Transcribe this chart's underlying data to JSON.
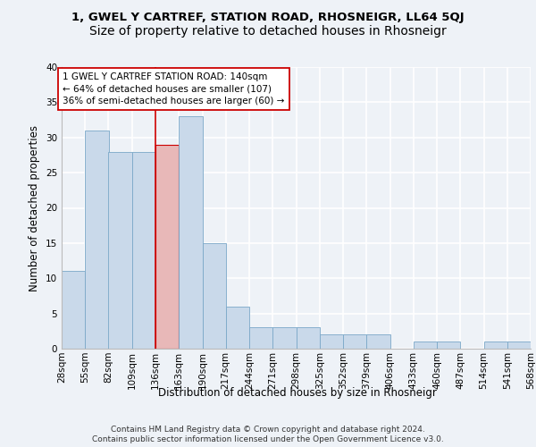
{
  "title1": "1, GWEL Y CARTREF, STATION ROAD, RHOSNEIGR, LL64 5QJ",
  "title2": "Size of property relative to detached houses in Rhosneigr",
  "xlabel": "Distribution of detached houses by size in Rhosneigr",
  "ylabel": "Number of detached properties",
  "bin_edges": [
    28,
    55,
    82,
    109,
    136,
    163,
    190,
    217,
    244,
    271,
    298,
    325,
    352,
    379,
    406,
    433,
    460,
    487,
    514,
    541,
    568
  ],
  "bin_labels": [
    "28sqm",
    "55sqm",
    "82sqm",
    "109sqm",
    "136sqm",
    "163sqm",
    "190sqm",
    "217sqm",
    "244sqm",
    "271sqm",
    "298sqm",
    "325sqm",
    "352sqm",
    "379sqm",
    "406sqm",
    "433sqm",
    "460sqm",
    "487sqm",
    "514sqm",
    "541sqm",
    "568sqm"
  ],
  "counts": [
    11,
    31,
    28,
    28,
    29,
    33,
    15,
    6,
    3,
    3,
    3,
    2,
    2,
    2,
    0,
    1,
    1,
    0,
    1,
    1
  ],
  "bar_color": "#c9d9ea",
  "bar_edge_color": "#7ba8c8",
  "highlight_index": 4,
  "highlight_bar_color": "#e8b8b8",
  "highlight_edge_color": "#cc0000",
  "vline_x": 136,
  "vline_color": "#cc0000",
  "annotation_text": "1 GWEL Y CARTREF STATION ROAD: 140sqm\n← 64% of detached houses are smaller (107)\n36% of semi-detached houses are larger (60) →",
  "annotation_box_color": "#ffffff",
  "annotation_box_edge": "#cc0000",
  "ylim": [
    0,
    40
  ],
  "yticks": [
    0,
    5,
    10,
    15,
    20,
    25,
    30,
    35,
    40
  ],
  "footer_line1": "Contains HM Land Registry data © Crown copyright and database right 2024.",
  "footer_line2": "Contains public sector information licensed under the Open Government Licence v3.0.",
  "background_color": "#eef2f7",
  "axes_background": "#eef2f7",
  "grid_color": "#ffffff",
  "title1_fontsize": 9.5,
  "title2_fontsize": 10,
  "xlabel_fontsize": 8.5,
  "ylabel_fontsize": 8.5,
  "tick_fontsize": 7.5,
  "annotation_fontsize": 7.5,
  "footer_fontsize": 6.5
}
